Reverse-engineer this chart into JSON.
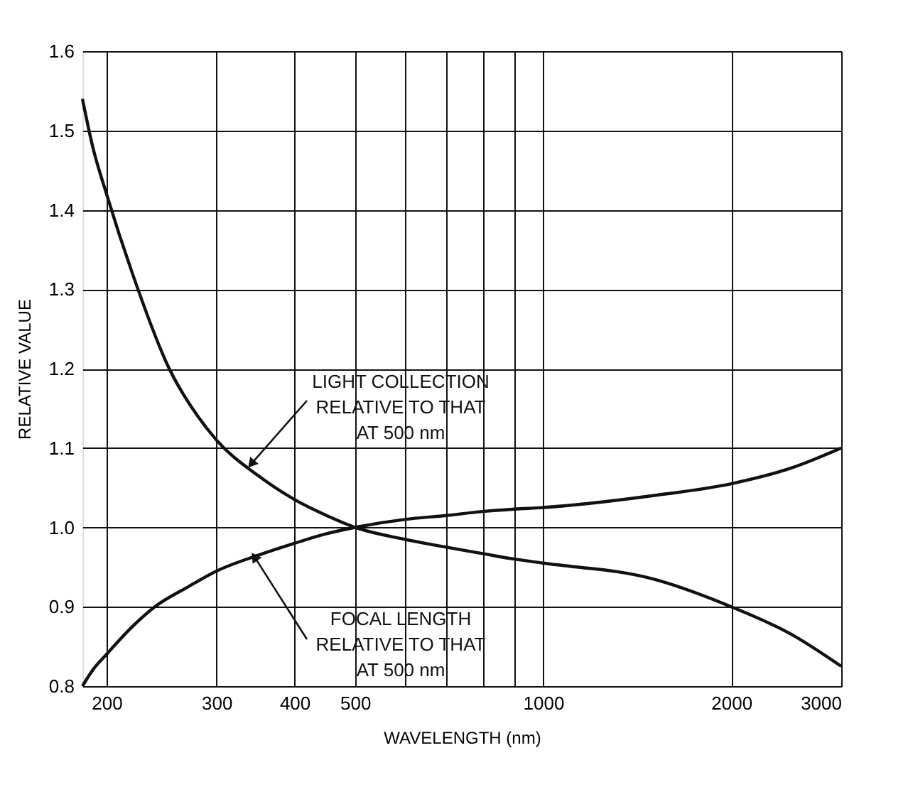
{
  "chart_data": {
    "type": "line",
    "xlabel": "WAVELENGTH (nm)",
    "ylabel": "RELATIVE VALUE",
    "log": "x",
    "grid": true,
    "line_style": "solid",
    "marker": "none",
    "xlim": [
      183,
      3000
    ],
    "ylim": [
      0.8,
      1.6
    ],
    "xticks": [
      200,
      300,
      400,
      500,
      {
        "value": 600,
        "label": null
      },
      {
        "value": 700,
        "label": null
      },
      {
        "value": 800,
        "label": null
      },
      {
        "value": 900,
        "label": null
      },
      1000,
      2000,
      3000
    ],
    "yticks": [
      0.8,
      0.9,
      {
        "value": 1.0,
        "label": "1.0"
      },
      1.1,
      1.2,
      1.3,
      1.4,
      1.5,
      1.6
    ],
    "series": [
      {
        "color": "#111111",
        "x": [
          183,
          190,
          200,
          220,
          252,
          280,
          300,
          350,
          400,
          450,
          500,
          600,
          700,
          800,
          900,
          1000,
          1500,
          2000,
          2500,
          3000
        ],
        "values": [
          1.54,
          1.48,
          1.42,
          1.32,
          1.2,
          1.14,
          1.11,
          1.065,
          1.035,
          1.015,
          1.0,
          0.985,
          0.975,
          0.967,
          0.96,
          0.955,
          0.935,
          0.9,
          0.865,
          0.825
        ]
      },
      {
        "color": "#111111",
        "x": [
          183,
          190,
          200,
          220,
          239,
          270,
          300,
          350,
          400,
          450,
          500,
          600,
          700,
          800,
          900,
          1000,
          1500,
          2000,
          2500,
          3000
        ],
        "values": [
          0.8,
          0.82,
          0.84,
          0.875,
          0.9,
          0.925,
          0.945,
          0.965,
          0.98,
          0.992,
          1.0,
          1.01,
          1.015,
          1.02,
          1.023,
          1.025,
          1.04,
          1.055,
          1.075,
          1.1
        ]
      }
    ],
    "annotations": [
      {
        "text": "LIGHT COLLECTION\nRELATIVE TO THAT\nAT 500 nm",
        "x": 341,
        "y": 1.08
      },
      {
        "text": "FOCAL LENGTH\nRELATIVE TO THAT\nAT 500 nm",
        "x": 345,
        "y": 0.963
      }
    ]
  }
}
